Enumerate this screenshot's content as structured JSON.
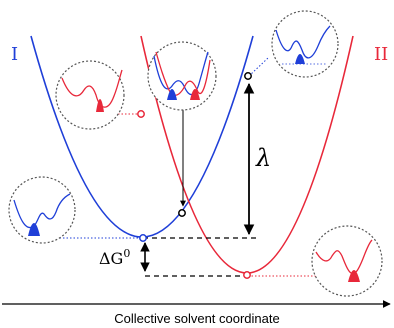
{
  "labels": {
    "curve_1": "I",
    "curve_2": "II",
    "lambda": "λ",
    "delta_g": "ΔG",
    "delta_g_sup": "0",
    "x_axis": "Collective solvent coordinate"
  },
  "colors": {
    "blue": "#1f3fd8",
    "red": "#e8283a",
    "black": "#000000",
    "circle": "#555555"
  }
}
